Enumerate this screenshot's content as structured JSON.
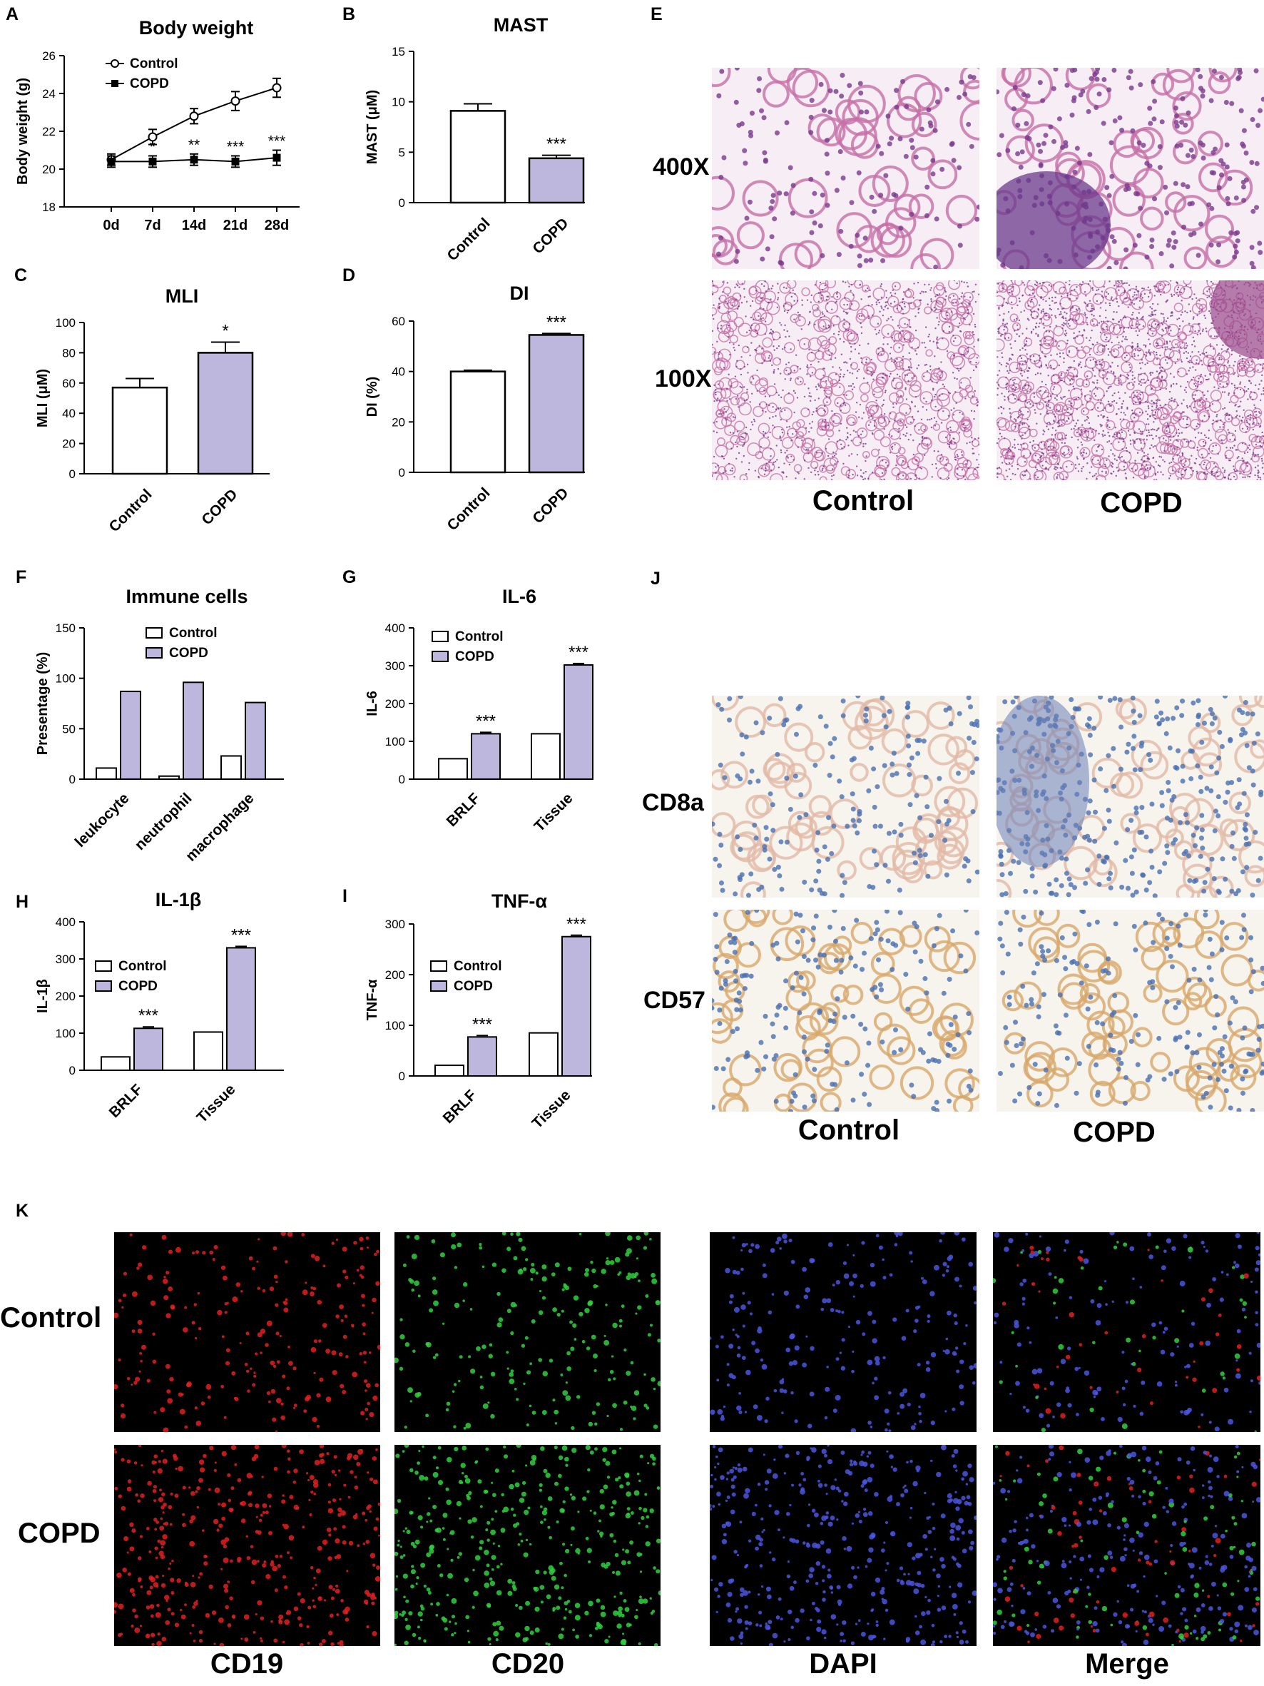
{
  "panels": {
    "A": "A",
    "B": "B",
    "C": "C",
    "D": "D",
    "E": "E",
    "F": "F",
    "G": "G",
    "H": "H",
    "I": "I",
    "J": "J",
    "K": "K"
  },
  "colors": {
    "control": "#ffffff",
    "copd": "#bdb7dd",
    "stroke": "#000000"
  },
  "chart_data": [
    {
      "id": "A",
      "type": "line",
      "title": "Body weight",
      "ylabel": "Body weight (g)",
      "xlabel": "",
      "categories": [
        "0d",
        "7d",
        "14d",
        "21d",
        "28d"
      ],
      "ylim": [
        18,
        26
      ],
      "yticks": [
        18,
        20,
        22,
        24,
        26
      ],
      "legend": [
        "Control",
        "COPD"
      ],
      "series": [
        {
          "name": "Control",
          "values": [
            20.5,
            21.7,
            22.8,
            23.6,
            24.3
          ],
          "errors": [
            0.3,
            0.4,
            0.4,
            0.5,
            0.5
          ],
          "marker": "open-circle"
        },
        {
          "name": "COPD",
          "values": [
            20.4,
            20.4,
            20.5,
            20.4,
            20.6
          ],
          "errors": [
            0.3,
            0.3,
            0.3,
            0.3,
            0.4
          ],
          "marker": "filled-square"
        }
      ],
      "annotations": [
        "",
        "*",
        "**",
        "***",
        "***"
      ]
    },
    {
      "id": "B",
      "type": "bar",
      "title": "MAST",
      "ylabel": "MAST (μM)",
      "categories": [
        "Control",
        "COPD"
      ],
      "values": [
        9.1,
        4.4
      ],
      "errors": [
        0.7,
        0.3
      ],
      "ylim": [
        0,
        15
      ],
      "yticks": [
        0,
        5,
        10,
        15
      ],
      "annotations": [
        "",
        "***"
      ]
    },
    {
      "id": "C",
      "type": "bar",
      "title": "MLI",
      "ylabel": "MLI (μM)",
      "categories": [
        "Control",
        "COPD"
      ],
      "values": [
        57,
        80
      ],
      "errors": [
        6,
        7
      ],
      "ylim": [
        0,
        100
      ],
      "yticks": [
        0,
        20,
        40,
        60,
        80,
        100
      ],
      "annotations": [
        "",
        "*"
      ]
    },
    {
      "id": "D",
      "type": "bar",
      "title": "DI",
      "ylabel": "DI (%)",
      "categories": [
        "Control",
        "COPD"
      ],
      "values": [
        40,
        54.5
      ],
      "errors": [
        0.5,
        0.6
      ],
      "ylim": [
        0,
        60
      ],
      "yticks": [
        0,
        20,
        40,
        60
      ],
      "annotations": [
        "",
        "***"
      ]
    },
    {
      "id": "F",
      "type": "bar",
      "title": "Immune cells",
      "ylabel": "Presentage (%)",
      "categories": [
        "leukocyte",
        "neutrophil",
        "macrophage"
      ],
      "series": [
        {
          "name": "Control",
          "values": [
            11,
            3,
            23
          ]
        },
        {
          "name": "COPD",
          "values": [
            87,
            96,
            76
          ]
        }
      ],
      "ylim": [
        0,
        150
      ],
      "yticks": [
        0,
        50,
        100,
        150
      ],
      "legend": [
        "Control",
        "COPD"
      ]
    },
    {
      "id": "G",
      "type": "bar",
      "title": "IL-6",
      "ylabel": "IL-6",
      "categories": [
        "BRLF",
        "Tissue"
      ],
      "series": [
        {
          "name": "Control",
          "values": [
            54,
            120
          ]
        },
        {
          "name": "COPD",
          "values": [
            120,
            302
          ]
        }
      ],
      "ylim": [
        0,
        400
      ],
      "yticks": [
        0,
        100,
        200,
        300,
        400
      ],
      "legend": [
        "Control",
        "COPD"
      ],
      "annotations": [
        "***",
        "***"
      ]
    },
    {
      "id": "H",
      "type": "bar",
      "title": "IL-1β",
      "ylabel": "IL-1β",
      "categories": [
        "BRLF",
        "Tissue"
      ],
      "series": [
        {
          "name": "Control",
          "values": [
            36,
            103
          ]
        },
        {
          "name": "COPD",
          "values": [
            113,
            330
          ]
        }
      ],
      "ylim": [
        0,
        400
      ],
      "yticks": [
        0,
        100,
        200,
        300,
        400
      ],
      "legend": [
        "Control",
        "COPD"
      ],
      "annotations": [
        "***",
        "***"
      ]
    },
    {
      "id": "I",
      "type": "bar",
      "title": "TNF-α",
      "ylabel": "TNF-α",
      "categories": [
        "BRLF",
        "Tissue"
      ],
      "series": [
        {
          "name": "Control",
          "values": [
            21,
            85
          ]
        },
        {
          "name": "COPD",
          "values": [
            77,
            275
          ]
        }
      ],
      "ylim": [
        0,
        300
      ],
      "yticks": [
        0,
        100,
        200,
        300
      ],
      "legend": [
        "Control",
        "COPD"
      ],
      "annotations": [
        "***",
        "***"
      ]
    }
  ],
  "E": {
    "rows": [
      "400X",
      "100X"
    ],
    "cols": [
      "Control",
      "COPD"
    ]
  },
  "J": {
    "rows": [
      "CD8a",
      "CD57"
    ],
    "cols": [
      "Control",
      "COPD"
    ]
  },
  "K": {
    "rows": [
      "Control",
      "COPD"
    ],
    "cols": [
      "CD19",
      "CD20",
      "DAPI",
      "Merge"
    ]
  }
}
